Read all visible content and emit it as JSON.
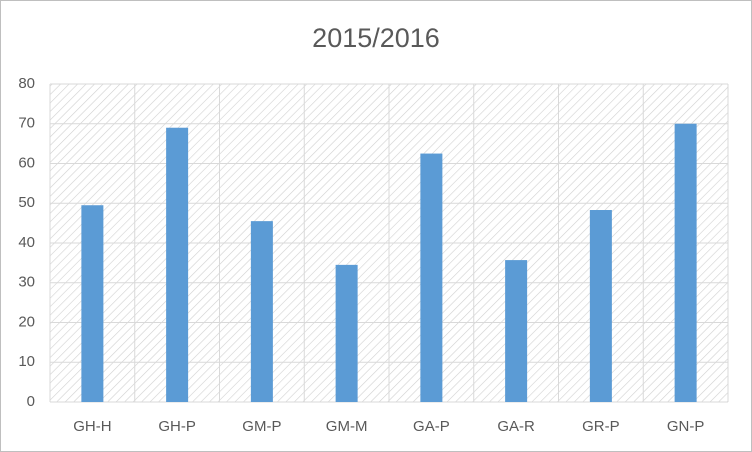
{
  "chart_data": {
    "type": "bar",
    "title": "2015/2016",
    "categories": [
      "GH-H",
      "GH-P",
      "GM-P",
      "GM-M",
      "GA-P",
      "GA-R",
      "GR-P",
      "GN-P"
    ],
    "values": [
      49.5,
      69,
      45.5,
      34.5,
      62.5,
      35.7,
      48.3,
      70
    ],
    "color": "#5b9bd5",
    "ylim": [
      0,
      80
    ],
    "yticks": [
      0,
      10,
      20,
      30,
      40,
      50,
      60,
      70,
      80
    ],
    "grid": true
  }
}
